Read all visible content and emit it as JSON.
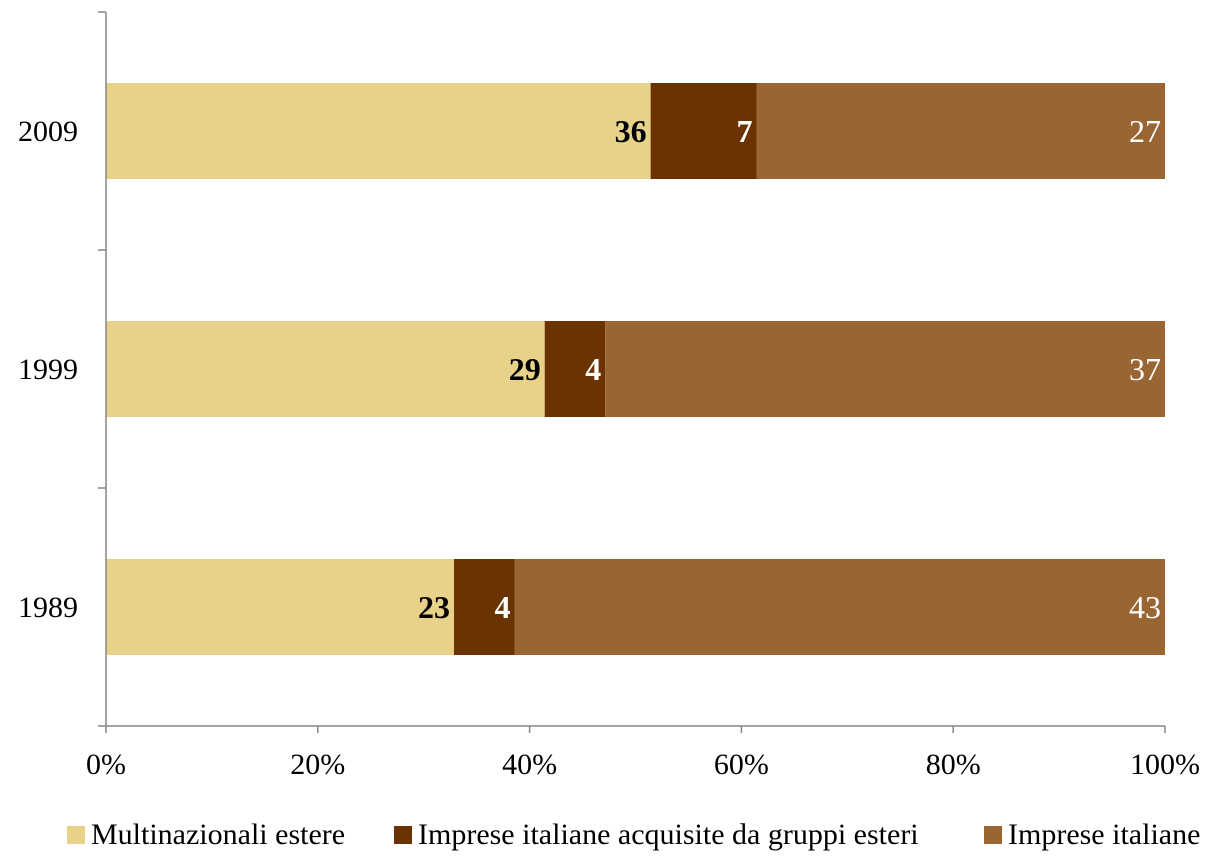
{
  "chart_data": {
    "type": "bar",
    "orientation": "horizontal",
    "stacked": "percent",
    "categories": [
      "2009",
      "1999",
      "1989"
    ],
    "series": [
      {
        "name": "Multinazionali estere",
        "values": [
          36,
          29,
          23
        ],
        "color": "#E8D28A",
        "label_color": "#000000",
        "label_bold": true
      },
      {
        "name": "Imprese italiane acquisite da gruppi esteri",
        "values": [
          7,
          4,
          4
        ],
        "color": "#6B3300",
        "label_color": "#FFFFFF",
        "label_bold": true
      },
      {
        "name": "Imprese italiane",
        "values": [
          27,
          37,
          43
        ],
        "color": "#996633",
        "label_color": "#FFFFFF",
        "label_bold": false
      }
    ],
    "xlim": [
      0,
      100
    ],
    "xticks": [
      "0%",
      "20%",
      "40%",
      "60%",
      "80%",
      "100%"
    ],
    "grid": false,
    "legend_position": "bottom"
  }
}
